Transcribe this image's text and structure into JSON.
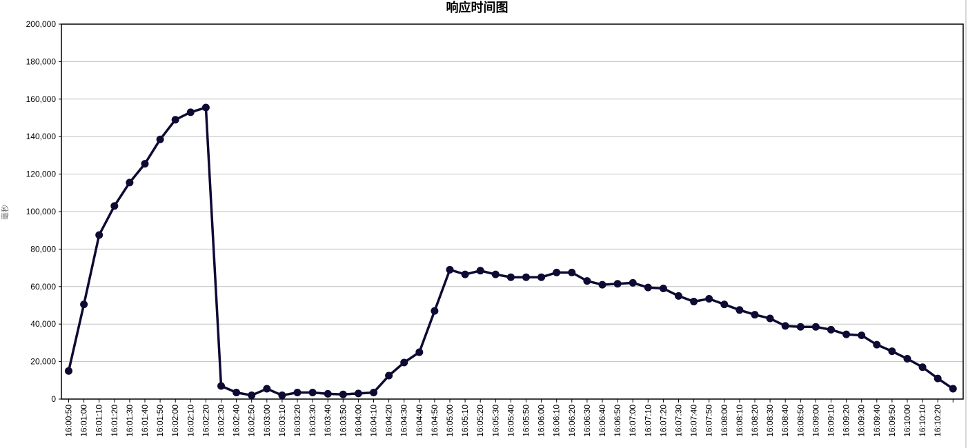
{
  "chart_data": {
    "type": "line",
    "title": "响应时间图",
    "xlabel": "",
    "ylabel": "毫秒",
    "ylim": [
      0,
      200000
    ],
    "yticks": [
      0,
      20000,
      40000,
      60000,
      80000,
      100000,
      120000,
      140000,
      160000,
      180000,
      200000
    ],
    "ytick_labels": [
      "0",
      "20,000",
      "40,000",
      "60,000",
      "80,000",
      "100,000",
      "120,000",
      "140,000",
      "160,000",
      "180,000",
      "200,000"
    ],
    "grid": true,
    "legend": "none",
    "line_color": "#0d0a33",
    "categories": [
      "16:00:50",
      "16:01:00",
      "16:01:10",
      "16:01:20",
      "16:01:30",
      "16:01:40",
      "16:01:50",
      "16:02:00",
      "16:02:10",
      "16:02:20",
      "16:02:30",
      "16:02:40",
      "16:02:50",
      "16:03:00",
      "16:03:10",
      "16:03:20",
      "16:03:30",
      "16:03:40",
      "16:03:50",
      "16:04:00",
      "16:04:10",
      "16:04:20",
      "16:04:30",
      "16:04:40",
      "16:04:50",
      "16:05:00",
      "16:05:10",
      "16:05:20",
      "16:05:30",
      "16:05:40",
      "16:05:50",
      "16:06:00",
      "16:06:10",
      "16:06:20",
      "16:06:30",
      "16:06:40",
      "16:06:50",
      "16:07:00",
      "16:07:10",
      "16:07:20",
      "16:07:30",
      "16:07:40",
      "16:07:50",
      "16:08:00",
      "16:08:10",
      "16:08:20",
      "16:08:30",
      "16:08:40",
      "16:08:50",
      "16:09:00",
      "16:09:10",
      "16:09:20",
      "16:09:30",
      "16:09:40",
      "16:09:50",
      "16:10:00",
      "16:10:10",
      "16:10:20",
      ""
    ],
    "values": [
      15000,
      50500,
      87500,
      103000,
      115500,
      125500,
      138500,
      149000,
      153000,
      155500,
      7000,
      3500,
      2000,
      5500,
      2000,
      3500,
      3500,
      2800,
      2500,
      3000,
      3500,
      12500,
      19500,
      25000,
      47000,
      69000,
      66500,
      68500,
      66500,
      65000,
      65000,
      65000,
      67500,
      67500,
      63000,
      61000,
      61500,
      62000,
      59500,
      59000,
      55000,
      52000,
      53500,
      50500,
      47500,
      45000,
      43000,
      39000,
      38500,
      38500,
      37000,
      34500,
      34000,
      29000,
      25500,
      21500,
      17000,
      11000,
      5500
    ]
  }
}
